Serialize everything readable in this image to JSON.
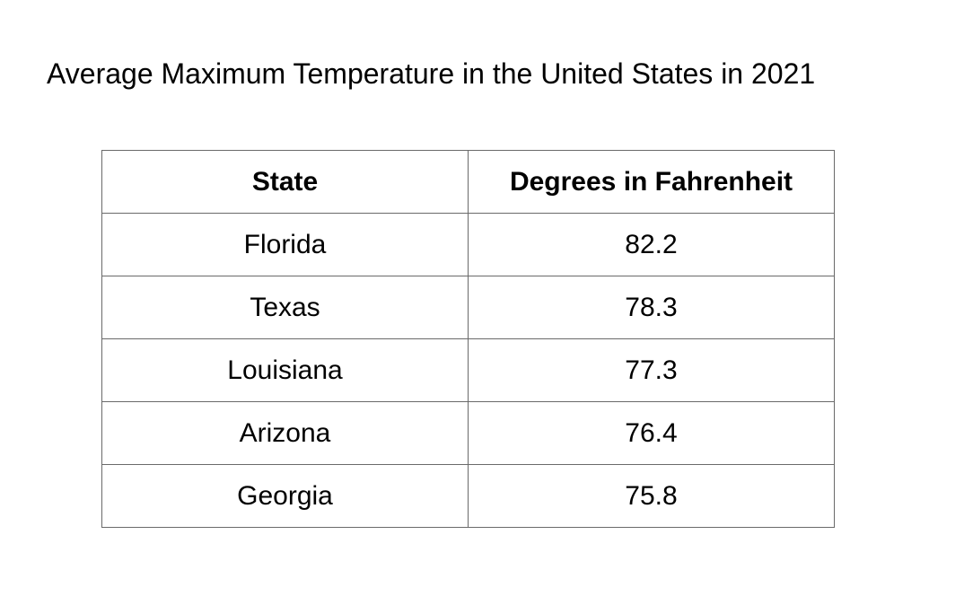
{
  "chart_data": {
    "type": "table",
    "title": "Average Maximum Temperature in the United States in 2021",
    "columns": [
      "State",
      "Degrees in Fahrenheit"
    ],
    "rows": [
      [
        "Florida",
        "82.2"
      ],
      [
        "Texas",
        "78.3"
      ],
      [
        "Louisiana",
        "77.3"
      ],
      [
        "Arizona",
        "76.4"
      ],
      [
        "Georgia",
        "75.8"
      ]
    ]
  }
}
